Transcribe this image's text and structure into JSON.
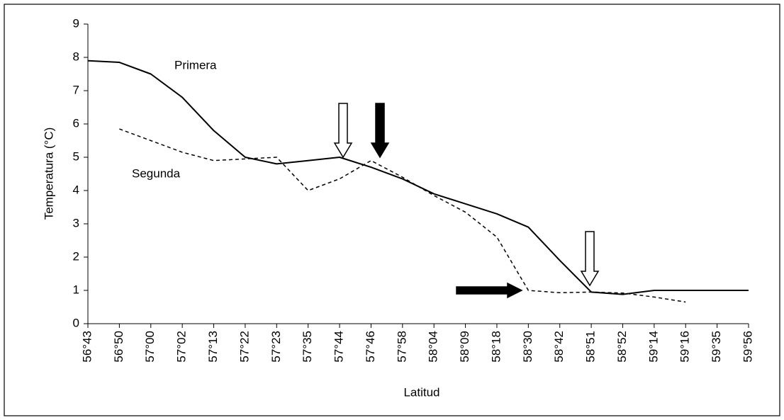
{
  "chart_data": {
    "type": "line",
    "xlabel": "Latitud",
    "ylabel": "Temperatura (°C)",
    "categories": [
      "56°43",
      "56°50",
      "57°00",
      "57°02",
      "57°13",
      "57°22",
      "57°23",
      "57°35",
      "57°44",
      "57°46",
      "57°58",
      "58°04",
      "58°09",
      "58°18",
      "58°30",
      "58°42",
      "58°51",
      "58°52",
      "59°14",
      "59°16",
      "59°35",
      "59°56"
    ],
    "series": [
      {
        "name": "Primera",
        "color": "#000000",
        "dash": false,
        "values": [
          7.9,
          7.85,
          7.5,
          6.8,
          5.8,
          5.0,
          4.8,
          4.9,
          5.0,
          4.7,
          4.35,
          3.9,
          3.6,
          3.3,
          2.9,
          1.9,
          0.95,
          0.88,
          1.0,
          1.0,
          1.0,
          1.0
        ]
      },
      {
        "name": "Segunda",
        "color": "#000000",
        "dash": true,
        "values": [
          null,
          5.85,
          5.5,
          5.15,
          4.9,
          4.95,
          5.0,
          4.0,
          4.35,
          4.9,
          4.4,
          3.85,
          3.35,
          2.6,
          1.0,
          0.93,
          0.95,
          0.92,
          0.8,
          0.65,
          null,
          null
        ]
      }
    ],
    "ylim": [
      0,
      9
    ],
    "yticks": [
      0,
      1,
      2,
      3,
      4,
      5,
      6,
      7,
      8,
      9
    ]
  }
}
